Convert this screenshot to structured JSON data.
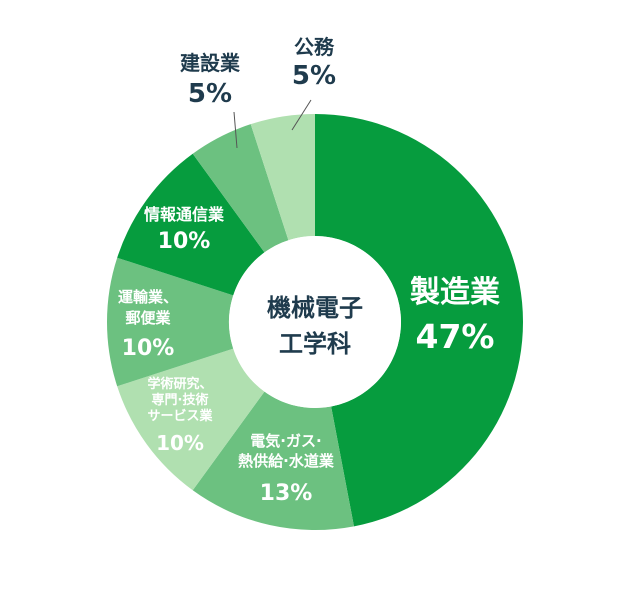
{
  "chart_data": {
    "type": "pie",
    "center_label_lines": [
      "機械電子",
      "工学科"
    ],
    "unit": "%",
    "series": [
      {
        "label_lines": [
          "製造業"
        ],
        "value_text": "47%",
        "value": 47,
        "color": "#069c3e"
      },
      {
        "label_lines": [
          "電気·ガス·",
          "熱供給·水道業"
        ],
        "value_text": "13%",
        "value": 13,
        "color": "#6cc180"
      },
      {
        "label_lines": [
          "学術研究、",
          "専門·技術",
          "サービス業"
        ],
        "value_text": "10%",
        "value": 10,
        "color": "#b0e0b0"
      },
      {
        "label_lines": [
          "運輸業、",
          "郵便業"
        ],
        "value_text": "10%",
        "value": 10,
        "color": "#6cc180"
      },
      {
        "label_lines": [
          "情報通信業"
        ],
        "value_text": "10%",
        "value": 10,
        "color": "#069c3e"
      },
      {
        "label_lines": [
          "建設業"
        ],
        "value_text": "5%",
        "value": 5,
        "color": "#6cc180"
      },
      {
        "label_lines": [
          "公務"
        ],
        "value_text": "5%",
        "value": 5,
        "color": "#b0e0b0"
      }
    ]
  }
}
